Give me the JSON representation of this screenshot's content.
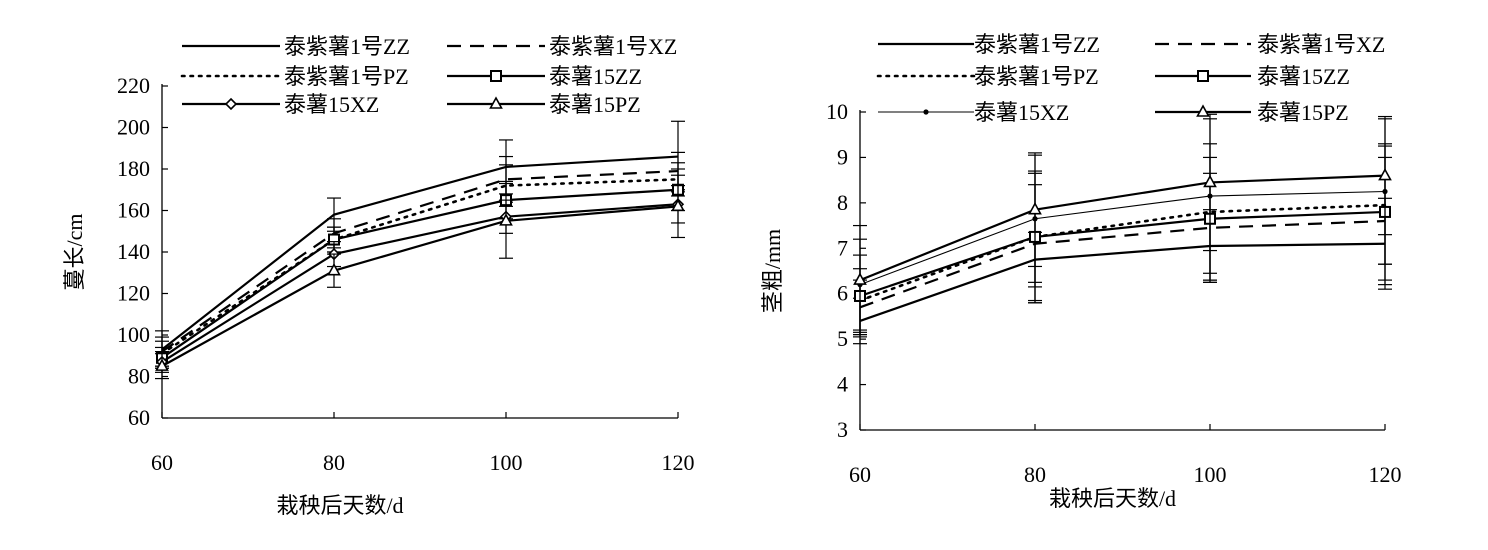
{
  "chart_data": [
    {
      "type": "line",
      "title": "",
      "xlabel": "栽秧后天数/d",
      "ylabel": "蔓长/cm",
      "x": [
        60,
        80,
        100,
        120
      ],
      "xlim": [
        60,
        120
      ],
      "ylim": [
        60,
        220
      ],
      "xticks": [
        "60",
        "80",
        "100",
        "120"
      ],
      "yticks": [
        "60",
        "80",
        "100",
        "120",
        "140",
        "160",
        "180",
        "200",
        "220"
      ],
      "grid": false,
      "legend_position": "top",
      "series": [
        {
          "name": "泰紫薯1号ZZ",
          "values": [
            93,
            158,
            181,
            186
          ],
          "err": [
            9,
            8,
            13,
            17
          ],
          "style": "solid-thick",
          "marker": "none"
        },
        {
          "name": "泰紫薯1号XZ",
          "values": [
            92,
            149,
            175,
            179
          ],
          "err": [
            7,
            7,
            11,
            9
          ],
          "style": "dashed",
          "marker": "none"
        },
        {
          "name": "泰紫薯1号PZ",
          "values": [
            91,
            146,
            172,
            175
          ],
          "err": [
            6,
            6,
            10,
            8
          ],
          "style": "dotted",
          "marker": "none"
        },
        {
          "name": "泰薯15ZZ",
          "values": [
            89,
            146,
            165,
            170
          ],
          "err": [
            5,
            6,
            9,
            10
          ],
          "style": "solid-thick",
          "marker": "square"
        },
        {
          "name": "泰薯15XZ",
          "values": [
            87,
            139,
            157,
            163
          ],
          "err": [
            5,
            6,
            8,
            9
          ],
          "style": "solid-thick",
          "marker": "diamond"
        },
        {
          "name": "泰薯15PZ",
          "values": [
            85,
            131,
            155,
            162
          ],
          "err": [
            6,
            8,
            18,
            15
          ],
          "style": "solid-thick",
          "marker": "triangle"
        }
      ]
    },
    {
      "type": "line",
      "title": "",
      "xlabel": "栽秧后天数/d",
      "ylabel": "茎粗/mm",
      "x": [
        60,
        80,
        100,
        120
      ],
      "xlim": [
        60,
        120
      ],
      "ylim": [
        3,
        10
      ],
      "xticks": [
        "60",
        "80",
        "100",
        "120"
      ],
      "yticks": [
        "3",
        "4",
        "5",
        "6",
        "7",
        "8",
        "9",
        "10"
      ],
      "grid": false,
      "legend_position": "top",
      "series": [
        {
          "name": "泰紫薯1号ZZ",
          "values": [
            5.4,
            6.75,
            7.05,
            7.1
          ],
          "err": [
            0.5,
            0.6,
            0.8,
            1.0
          ],
          "style": "solid-thick",
          "marker": "none"
        },
        {
          "name": "泰紫薯1号XZ",
          "values": [
            5.7,
            7.1,
            7.45,
            7.6
          ],
          "err": [
            0.6,
            1.3,
            1.2,
            1.4
          ],
          "style": "dashed",
          "marker": "none"
        },
        {
          "name": "泰紫薯1号PZ",
          "values": [
            5.85,
            7.25,
            7.8,
            7.95
          ],
          "err": [
            0.7,
            1.4,
            1.5,
            1.3
          ],
          "style": "dotted",
          "marker": "none"
        },
        {
          "name": "泰薯15ZZ",
          "values": [
            5.95,
            7.25,
            7.65,
            7.8
          ],
          "err": [
            0.9,
            1.45,
            1.35,
            1.5
          ],
          "style": "solid-thick",
          "marker": "square"
        },
        {
          "name": "泰薯15XZ",
          "values": [
            6.2,
            7.65,
            8.15,
            8.25
          ],
          "err": [
            1.0,
            1.4,
            1.7,
            1.6
          ],
          "style": "solid-thin",
          "marker": "dot"
        },
        {
          "name": "泰薯15PZ",
          "values": [
            6.3,
            7.85,
            8.45,
            8.6
          ],
          "err": [
            1.2,
            1.25,
            1.5,
            1.3
          ],
          "style": "solid-thick",
          "marker": "triangle"
        }
      ]
    }
  ]
}
